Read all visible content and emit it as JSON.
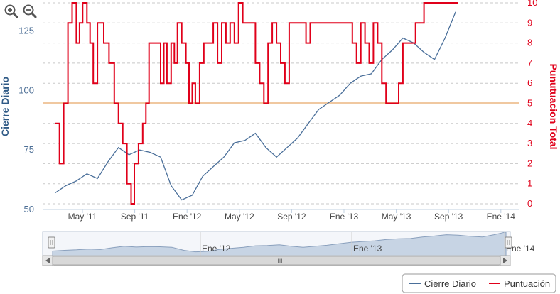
{
  "chart_data": {
    "type": "line",
    "axes": {
      "left": {
        "title": "Cierre Diario",
        "ticks": [
          50,
          75,
          100,
          125
        ],
        "range": [
          50,
          135
        ]
      },
      "right": {
        "title": "Punutuacion Total",
        "ticks": [
          0,
          1,
          2,
          3,
          4,
          5,
          6,
          7,
          8,
          9,
          10
        ],
        "range": [
          0,
          10
        ]
      },
      "x": {
        "ticks": [
          "May '11",
          "Sep '11",
          "Ene '12",
          "May '12",
          "Sep '12",
          "Ene '13",
          "May '13",
          "Sep '13",
          "Ene '14"
        ]
      }
    },
    "navigator": {
      "labels": [
        "Ene '12",
        "Ene '13",
        "Ene '14"
      ]
    },
    "reference_line": {
      "axis": "right",
      "value": 5,
      "color": "#f0c8a0"
    },
    "series": [
      {
        "name": "Cierre Diario",
        "axis": "left",
        "color": "#4a6f9a",
        "x": [
          0,
          1,
          2,
          3,
          4,
          5,
          6,
          7,
          8,
          9,
          10,
          11,
          12,
          13,
          14,
          15,
          16,
          17,
          18,
          19,
          20,
          21,
          22,
          23,
          24,
          25,
          26,
          27,
          28,
          29,
          30,
          31,
          32,
          33,
          34,
          35,
          36,
          37,
          38
        ],
        "values": [
          57,
          60,
          62,
          65,
          63,
          70,
          76,
          73,
          75,
          74,
          72,
          60,
          54,
          56,
          64,
          68,
          72,
          78,
          79,
          82,
          76,
          72,
          76,
          80,
          86,
          92,
          95,
          98,
          103,
          106,
          107,
          113,
          117,
          122,
          120,
          116,
          113,
          122,
          133
        ]
      },
      {
        "name": "Puntuación",
        "axis": "right",
        "color": "#e0001a",
        "x": [
          0,
          0.4,
          0.8,
          1.2,
          1.6,
          2.0,
          2.3,
          2.6,
          3.0,
          3.3,
          3.6,
          4.0,
          4.6,
          5.1,
          5.6,
          6.0,
          6.4,
          6.8,
          7.2,
          7.5,
          7.9,
          8.3,
          8.6,
          8.9,
          9.2,
          9.6,
          10.0,
          10.3,
          10.6,
          11.0,
          11.3,
          11.6,
          12.0,
          12.4,
          12.7,
          13.0,
          13.3,
          13.7,
          14.1,
          14.5,
          15.0,
          15.4,
          15.8,
          16.2,
          16.6,
          17.0,
          17.4,
          17.8,
          18.2,
          18.6,
          19.0,
          19.4,
          19.8,
          20.2,
          20.6,
          21.0,
          21.4,
          21.8,
          22.2,
          22.6,
          23.0,
          23.4,
          23.8,
          24.2,
          24.6,
          25.0,
          25.4,
          25.8,
          26.2,
          26.6,
          27.0,
          27.4,
          27.8,
          28.2,
          28.6,
          29.0,
          29.4,
          29.8,
          30.2,
          30.6,
          31.0,
          31.4,
          31.8,
          32.2,
          32.6,
          33.0,
          33.4,
          33.8,
          34.2,
          34.6,
          35.0,
          35.4,
          35.8,
          36.2,
          36.6,
          37.0,
          37.4,
          37.8,
          38.2
        ],
        "values": [
          4,
          2,
          5,
          9,
          10,
          8,
          9,
          10,
          9,
          8,
          6,
          9,
          8,
          7,
          5,
          4,
          3,
          1,
          0,
          2,
          3,
          4,
          5,
          8,
          8,
          8,
          6,
          8,
          6,
          8,
          7,
          9,
          8,
          7,
          5,
          6,
          5,
          7,
          8,
          8,
          9,
          7,
          9,
          8,
          9,
          8,
          10,
          9,
          9,
          9,
          7,
          6,
          5,
          8,
          9,
          8,
          7,
          6,
          9,
          9,
          9,
          9,
          8,
          9,
          9,
          9,
          9,
          9,
          9,
          9,
          9,
          9,
          9,
          8,
          7,
          9,
          8,
          7,
          9,
          8,
          6,
          5,
          5,
          5,
          6,
          8,
          8,
          8,
          9,
          9,
          10,
          10,
          10,
          10,
          10,
          10,
          10,
          10,
          10
        ]
      }
    ]
  },
  "toolbar": {
    "zoom_in_icon": "magnifier-plus-icon",
    "zoom_out_icon": "magnifier-minus-icon"
  },
  "scrollbar": {
    "thumb_grip": "III"
  },
  "legend": [
    {
      "label": "Cierre Diario",
      "color": "#4a6f9a"
    },
    {
      "label": "Puntuación",
      "color": "#e0001a"
    }
  ]
}
